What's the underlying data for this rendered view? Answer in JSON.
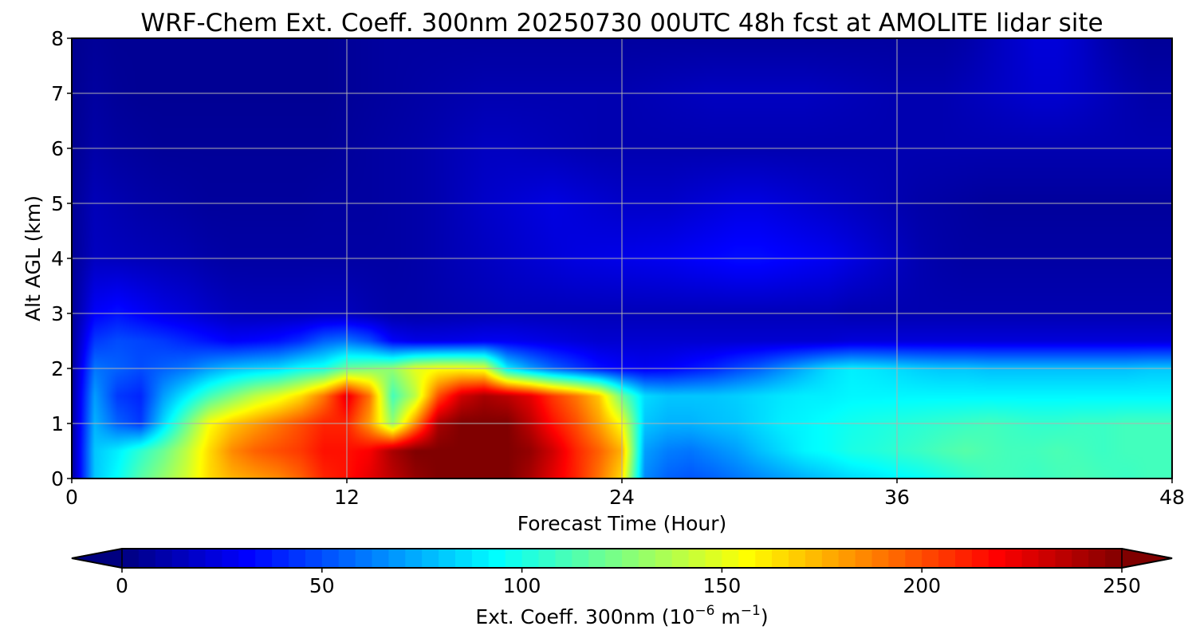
{
  "chart_data": {
    "type": "heatmap",
    "title": "WRF-Chem Ext. Coeff. 300nm  20250730 00UTC 48h fcst at AMOLITE lidar site",
    "xlabel": "Forecast Time (Hour)",
    "ylabel": "Alt AGL (km)",
    "xlim": [
      0,
      48
    ],
    "ylim": [
      0,
      8
    ],
    "xticks": [
      0,
      12,
      24,
      36,
      48
    ],
    "yticks": [
      0,
      1,
      2,
      3,
      4,
      5,
      6,
      7,
      8
    ],
    "grid": true,
    "colormap": "jet",
    "colorbar": {
      "orientation": "horizontal",
      "placement": "bottom",
      "label_prefix": "Ext. Coeff. 300nm  (10",
      "label_exp1": "−6",
      "label_mid": " m",
      "label_exp2": "−1",
      "label_suffix": ")",
      "range": [
        0,
        250
      ],
      "ticks": [
        0,
        50,
        100,
        150,
        200,
        250
      ],
      "extend": "both"
    },
    "x": [
      0,
      1,
      2,
      3,
      4,
      5,
      6,
      7,
      8,
      9,
      10,
      11,
      12,
      13,
      14,
      15,
      16,
      17,
      18,
      19,
      20,
      21,
      22,
      23,
      24,
      25,
      26,
      27,
      28,
      29,
      30,
      31,
      32,
      33,
      34,
      35,
      36,
      37,
      38,
      39,
      40,
      41,
      42,
      43,
      44,
      45,
      46,
      47,
      48
    ],
    "y": [
      0,
      0.5,
      1,
      1.5,
      2,
      2.5,
      3,
      4,
      5,
      6,
      7,
      8
    ],
    "values": [
      [
        5,
        80,
        95,
        115,
        130,
        145,
        165,
        175,
        180,
        185,
        195,
        210,
        215,
        225,
        235,
        245,
        250,
        250,
        250,
        250,
        240,
        225,
        210,
        190,
        165,
        65,
        55,
        52,
        55,
        60,
        65,
        70,
        75,
        80,
        85,
        88,
        92,
        95,
        100,
        105,
        110,
        110,
        108,
        110,
        112,
        110,
        108,
        110,
        110
      ],
      [
        5,
        80,
        90,
        105,
        120,
        140,
        165,
        185,
        195,
        200,
        205,
        215,
        215,
        220,
        240,
        250,
        250,
        250,
        250,
        250,
        245,
        230,
        210,
        195,
        175,
        70,
        62,
        60,
        65,
        70,
        78,
        85,
        92,
        95,
        100,
        102,
        105,
        108,
        112,
        115,
        112,
        110,
        110,
        112,
        110,
        108,
        110,
        110,
        110
      ],
      [
        5,
        75,
        55,
        45,
        85,
        120,
        155,
        170,
        180,
        190,
        200,
        210,
        210,
        180,
        130,
        185,
        240,
        250,
        250,
        250,
        235,
        215,
        200,
        180,
        155,
        80,
        75,
        75,
        78,
        80,
        85,
        90,
        92,
        95,
        98,
        100,
        102,
        104,
        106,
        108,
        110,
        108,
        106,
        106,
        108,
        108,
        110,
        110,
        110
      ],
      [
        5,
        70,
        45,
        40,
        70,
        90,
        110,
        125,
        140,
        150,
        165,
        190,
        225,
        190,
        110,
        140,
        200,
        230,
        240,
        235,
        225,
        205,
        190,
        170,
        120,
        85,
        80,
        80,
        80,
        82,
        85,
        88,
        90,
        90,
        92,
        92,
        92,
        92,
        92,
        92,
        92,
        92,
        92,
        92,
        92,
        92,
        92,
        92,
        92
      ],
      [
        5,
        60,
        55,
        50,
        55,
        60,
        70,
        78,
        82,
        85,
        95,
        100,
        120,
        125,
        130,
        150,
        155,
        155,
        150,
        90,
        70,
        55,
        45,
        35,
        30,
        28,
        30,
        35,
        40,
        48,
        55,
        65,
        75,
        85,
        90,
        88,
        85,
        82,
        80,
        80,
        78,
        78,
        78,
        78,
        78,
        78,
        78,
        80,
        80
      ],
      [
        5,
        45,
        50,
        48,
        45,
        40,
        35,
        30,
        32,
        35,
        42,
        55,
        60,
        50,
        30,
        25,
        25,
        26,
        28,
        28,
        26,
        24,
        22,
        20,
        20,
        20,
        20,
        20,
        20,
        20,
        20,
        20,
        20,
        20,
        22,
        22,
        22,
        22,
        22,
        22,
        22,
        22,
        22,
        22,
        22,
        22,
        22,
        22,
        22
      ],
      [
        5,
        30,
        35,
        30,
        25,
        22,
        18,
        15,
        14,
        14,
        14,
        15,
        15,
        12,
        10,
        10,
        11,
        12,
        13,
        14,
        14,
        14,
        14,
        14,
        14,
        14,
        14,
        14,
        14,
        14,
        14,
        14,
        14,
        14,
        12,
        12,
        12,
        12,
        12,
        12,
        12,
        12,
        12,
        12,
        12,
        12,
        12,
        12,
        12
      ],
      [
        5,
        16,
        15,
        14,
        13,
        12,
        10,
        9,
        9,
        9,
        9,
        9,
        9,
        9,
        9,
        10,
        12,
        14,
        16,
        18,
        20,
        22,
        24,
        25,
        26,
        27,
        28,
        30,
        32,
        34,
        34,
        32,
        30,
        28,
        24,
        20,
        16,
        12,
        10,
        9,
        9,
        9,
        9,
        9,
        9,
        9,
        9,
        9,
        9
      ],
      [
        5,
        14,
        12,
        10,
        9,
        8,
        7,
        7,
        7,
        7,
        7,
        8,
        8,
        8,
        9,
        10,
        12,
        15,
        18,
        20,
        22,
        24,
        22,
        20,
        18,
        18,
        18,
        20,
        22,
        24,
        24,
        22,
        20,
        18,
        16,
        14,
        12,
        10,
        9,
        8,
        7,
        7,
        7,
        7,
        7,
        7,
        7,
        7,
        7
      ],
      [
        4,
        10,
        8,
        7,
        6,
        6,
        6,
        6,
        6,
        6,
        6,
        6,
        7,
        8,
        9,
        10,
        12,
        14,
        16,
        16,
        15,
        14,
        13,
        12,
        12,
        12,
        12,
        12,
        12,
        12,
        12,
        12,
        12,
        12,
        12,
        12,
        12,
        12,
        12,
        12,
        12,
        12,
        12,
        12,
        12,
        12,
        12,
        12,
        12
      ],
      [
        4,
        8,
        6,
        5,
        5,
        5,
        5,
        5,
        5,
        5,
        5,
        5,
        6,
        7,
        8,
        9,
        10,
        11,
        12,
        12,
        12,
        12,
        12,
        12,
        12,
        13,
        14,
        15,
        16,
        16,
        16,
        16,
        16,
        15,
        14,
        13,
        12,
        12,
        12,
        14,
        16,
        18,
        20,
        20,
        18,
        15,
        12,
        10,
        10
      ],
      [
        4,
        6,
        5,
        5,
        5,
        5,
        5,
        5,
        5,
        5,
        5,
        5,
        6,
        7,
        8,
        8,
        8,
        8,
        8,
        8,
        8,
        8,
        8,
        8,
        8,
        8,
        8,
        8,
        8,
        8,
        8,
        8,
        8,
        8,
        8,
        8,
        8,
        8,
        8,
        10,
        14,
        18,
        22,
        22,
        18,
        12,
        8,
        6,
        6
      ]
    ]
  }
}
